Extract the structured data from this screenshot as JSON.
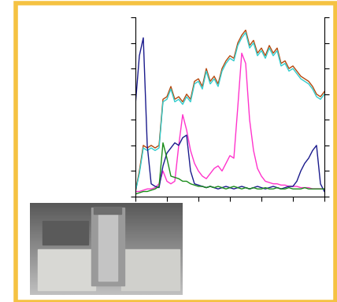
{
  "chart_data": {
    "type": "line",
    "x": [
      0,
      0.125,
      0.25,
      0.375,
      0.5,
      0.625,
      0.75,
      0.875,
      1,
      1.125,
      1.25,
      1.375,
      1.5,
      1.625,
      1.75,
      1.875,
      2,
      2.125,
      2.25,
      2.375,
      2.5,
      2.625,
      2.75,
      2.875,
      3,
      3.125,
      3.25,
      3.375,
      3.5,
      3.625,
      3.75,
      3.875,
      4,
      4.125,
      4.25,
      4.375,
      4.5,
      4.625,
      4.75,
      4.875,
      5,
      5.125,
      5.25,
      5.375,
      5.5,
      5.625,
      5.75,
      5.875,
      6
    ],
    "xlim": [
      0,
      6
    ],
    "ylim": [
      0,
      7
    ],
    "xticks": [
      0,
      1,
      2,
      3,
      4,
      5,
      6
    ],
    "yticks": [
      0,
      1,
      2,
      3,
      4,
      5,
      6,
      7
    ],
    "tick_labels": false,
    "series": [
      {
        "color": "#b5470c",
        "values": [
          0.2,
          1.0,
          2.0,
          1.9,
          2.0,
          1.9,
          2.0,
          3.8,
          3.9,
          4.3,
          3.8,
          3.9,
          3.7,
          4.0,
          3.8,
          4.5,
          4.6,
          4.3,
          5.0,
          4.5,
          4.7,
          4.4,
          5.0,
          5.3,
          5.5,
          5.4,
          6.0,
          6.3,
          6.5,
          5.9,
          6.1,
          5.6,
          5.8,
          5.5,
          5.9,
          5.6,
          5.8,
          5.2,
          5.3,
          5.0,
          5.1,
          4.9,
          4.7,
          4.6,
          4.5,
          4.3,
          4.0,
          3.9,
          4.1
        ]
      },
      {
        "color": "#33cccc",
        "values": [
          0.2,
          0.9,
          1.9,
          1.8,
          1.9,
          1.8,
          1.9,
          3.7,
          3.8,
          4.2,
          3.7,
          3.8,
          3.6,
          3.9,
          3.7,
          4.4,
          4.5,
          4.2,
          4.9,
          4.4,
          4.6,
          4.3,
          4.9,
          5.2,
          5.4,
          5.3,
          5.9,
          6.2,
          6.4,
          5.8,
          6.0,
          5.5,
          5.7,
          5.4,
          5.8,
          5.5,
          5.7,
          5.1,
          5.2,
          4.9,
          5.0,
          4.8,
          4.6,
          4.5,
          4.4,
          4.2,
          3.9,
          3.8,
          4.0
        ]
      },
      {
        "color": "#ff33cc",
        "values": [
          0.2,
          0.2,
          0.25,
          0.3,
          0.3,
          0.35,
          0.5,
          1.0,
          0.6,
          0.5,
          0.6,
          2.0,
          3.2,
          2.6,
          1.8,
          1.3,
          1.0,
          0.8,
          0.7,
          0.9,
          1.1,
          1.2,
          1.0,
          1.3,
          1.6,
          1.5,
          3.5,
          5.6,
          5.2,
          3.0,
          1.8,
          1.1,
          0.8,
          0.6,
          0.55,
          0.5,
          0.5,
          0.45,
          0.45,
          0.4,
          0.4,
          0.4,
          0.35,
          0.35,
          0.35,
          0.3,
          0.3,
          0.3,
          0.3
        ]
      },
      {
        "color": "#1a1a8c",
        "values": [
          3.6,
          5.5,
          6.2,
          2.0,
          0.5,
          0.4,
          0.35,
          1.2,
          1.7,
          1.9,
          2.1,
          2.0,
          2.3,
          2.4,
          1.0,
          0.5,
          0.45,
          0.4,
          0.35,
          0.4,
          0.35,
          0.3,
          0.35,
          0.4,
          0.35,
          0.3,
          0.35,
          0.4,
          0.35,
          0.3,
          0.35,
          0.4,
          0.35,
          0.3,
          0.35,
          0.4,
          0.35,
          0.3,
          0.35,
          0.4,
          0.4,
          0.6,
          1.0,
          1.3,
          1.5,
          1.8,
          2.0,
          0.5,
          0.2
        ]
      },
      {
        "color": "#1a8c1a",
        "values": [
          0.1,
          0.15,
          0.2,
          0.2,
          0.25,
          0.3,
          0.4,
          2.1,
          1.5,
          0.8,
          0.75,
          0.7,
          0.6,
          0.6,
          0.5,
          0.45,
          0.4,
          0.4,
          0.35,
          0.4,
          0.35,
          0.4,
          0.35,
          0.3,
          0.35,
          0.4,
          0.35,
          0.3,
          0.35,
          0.3,
          0.35,
          0.3,
          0.3,
          0.35,
          0.3,
          0.3,
          0.35,
          0.3,
          0.3,
          0.35,
          0.3,
          0.3,
          0.3,
          0.35,
          0.3,
          0.3,
          0.3,
          0.3,
          0.3
        ]
      }
    ]
  }
}
